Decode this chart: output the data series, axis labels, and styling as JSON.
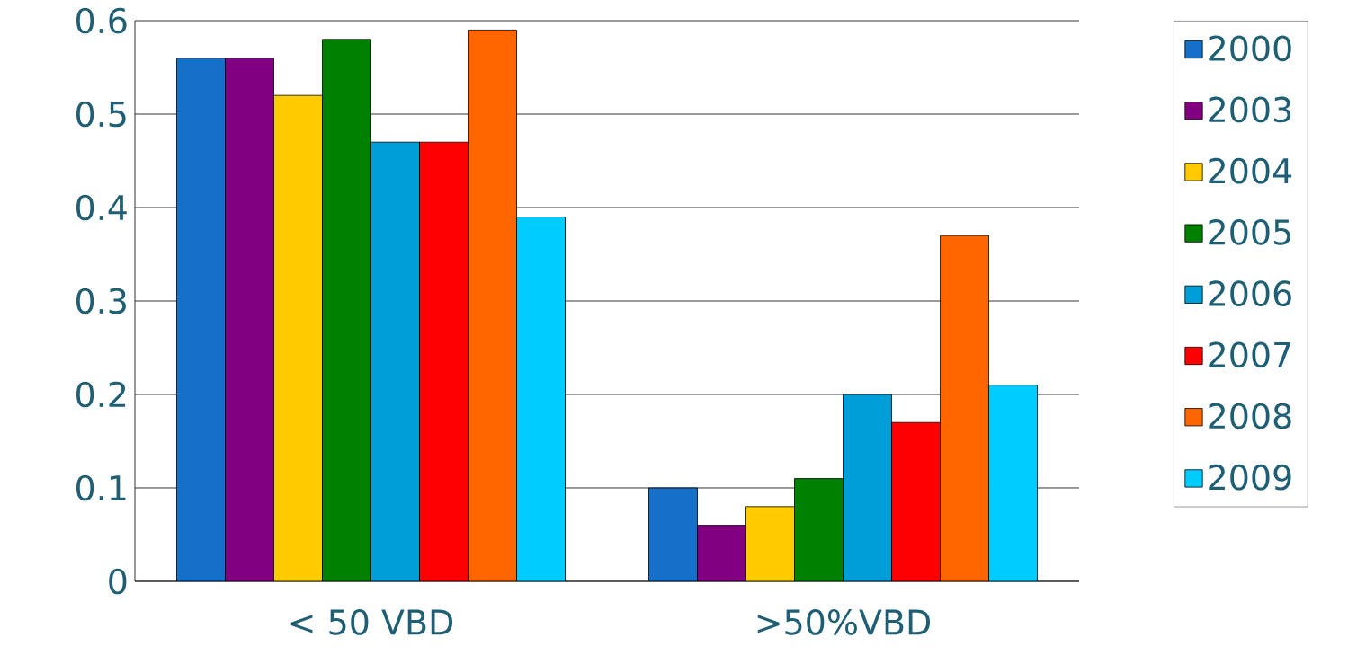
{
  "chart_data": {
    "type": "bar",
    "categories": [
      "< 50 VBD",
      ">50%VBD"
    ],
    "series": [
      {
        "name": "2000",
        "color": "#1470c8",
        "values": [
          0.56,
          0.1
        ]
      },
      {
        "name": "2003",
        "color": "#800080",
        "values": [
          0.56,
          0.06
        ]
      },
      {
        "name": "2004",
        "color": "#ffcc00",
        "values": [
          0.52,
          0.08
        ]
      },
      {
        "name": "2005",
        "color": "#008000",
        "values": [
          0.58,
          0.11
        ]
      },
      {
        "name": "2006",
        "color": "#009ed9",
        "values": [
          0.47,
          0.2
        ]
      },
      {
        "name": "2007",
        "color": "#ff0000",
        "values": [
          0.47,
          0.17
        ]
      },
      {
        "name": "2008",
        "color": "#ff6600",
        "values": [
          0.59,
          0.37
        ]
      },
      {
        "name": "2009",
        "color": "#00ccff",
        "values": [
          0.39,
          0.21
        ]
      }
    ],
    "ylim": [
      0,
      0.6
    ],
    "yticks": [
      0,
      0.1,
      0.2,
      0.3,
      0.4,
      0.5,
      0.6
    ],
    "grid": "y",
    "legend": "right"
  }
}
